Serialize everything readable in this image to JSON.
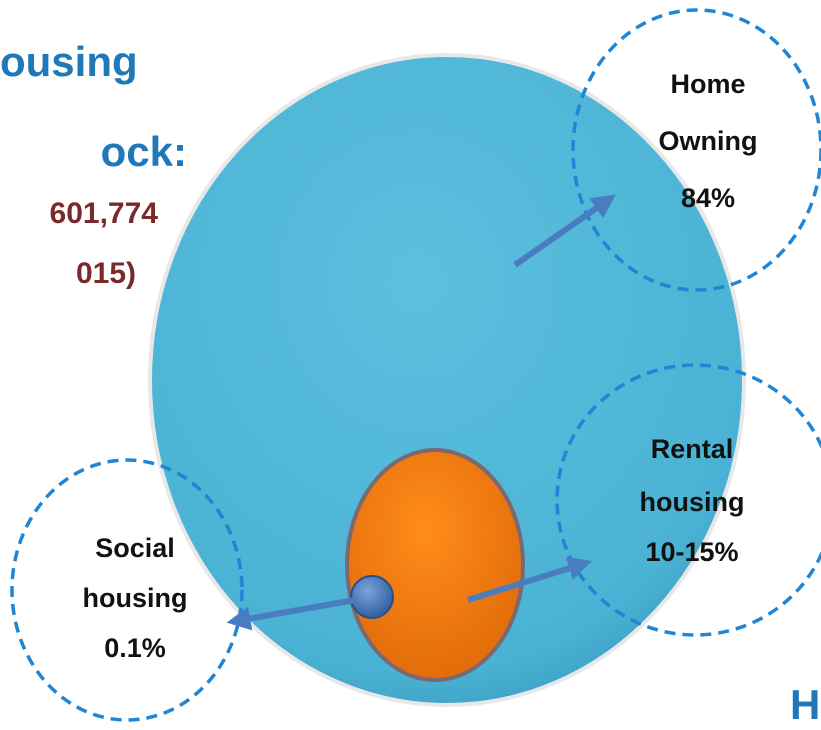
{
  "heading": {
    "lines": [
      "ousing",
      "ock:"
    ]
  },
  "subheading": {
    "lines": [
      "601,774",
      "015)"
    ]
  },
  "callouts": [
    {
      "lines": [
        "Home",
        "Owning",
        "84%"
      ]
    },
    {
      "lines": [
        "Rental",
        "housing",
        "10-15%"
      ]
    },
    {
      "lines": [
        "Social",
        "housing",
        "0.1%"
      ]
    }
  ],
  "corner_text": "H"
}
